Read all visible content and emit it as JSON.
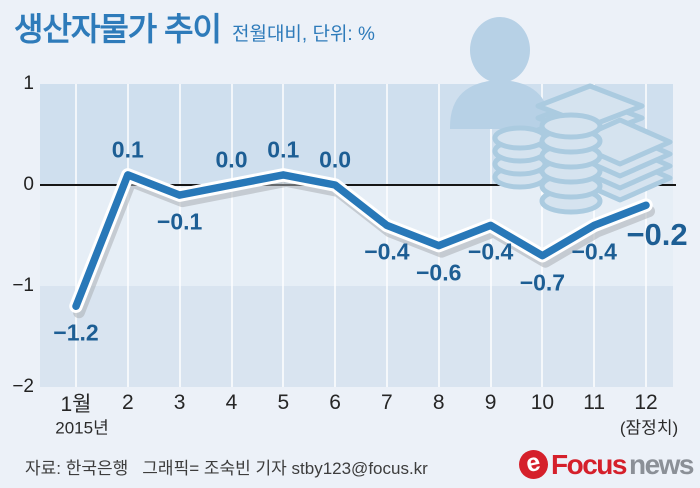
{
  "title": "생산자물가 추이",
  "subtitle": "전월대비, 단위: %",
  "chart_data": {
    "type": "line",
    "title": "생산자물가 추이 (전월대비, %)",
    "x": [
      "1월",
      "2",
      "3",
      "4",
      "5",
      "6",
      "7",
      "8",
      "9",
      "10",
      "11",
      "12"
    ],
    "values": [
      -1.2,
      0.1,
      -0.1,
      0.0,
      0.1,
      0.0,
      -0.4,
      -0.6,
      -0.4,
      -0.7,
      -0.4,
      -0.2
    ],
    "labels": [
      "−1.2",
      "0.1",
      "−0.1",
      "0.0",
      "0.1",
      "0.0",
      "−0.4",
      "−0.6",
      "−0.4",
      "−0.7",
      "−0.4",
      "−0.2"
    ],
    "label_pos": [
      "below",
      "above",
      "below",
      "above",
      "above",
      "above",
      "below",
      "below",
      "below",
      "below",
      "below",
      "end"
    ],
    "yticks": [
      1,
      0,
      -1,
      -2
    ],
    "ytick_labels": [
      "1",
      "0",
      "−1",
      "−2"
    ],
    "ylim": [
      -2,
      1
    ],
    "x_start_note": "2015년",
    "x_end_note": "(잠정치)",
    "grid": "vertical-white",
    "legend": "none",
    "line_color": "#2878b8",
    "label_color": "#1d5e94"
  },
  "colors": {
    "accent_blue": "#2e7bba",
    "line_blue": "#2878b8",
    "value_label_blue": "#1d5e94",
    "zero_line": "#161616",
    "logo_red": "#d5202b",
    "logo_gray": "#8b9097"
  },
  "icons": {
    "decorative": [
      "person-silhouette-icon",
      "banknote-stack-icon",
      "coin-stack-icon"
    ],
    "logo_mark_glyph": "e"
  },
  "footer": {
    "source": "자료: 한국은행",
    "credit": "그래픽= 조숙빈 기자 stby123@focus.kr",
    "logo": {
      "mark": "e",
      "focus": "Focus",
      "news": "news"
    }
  }
}
